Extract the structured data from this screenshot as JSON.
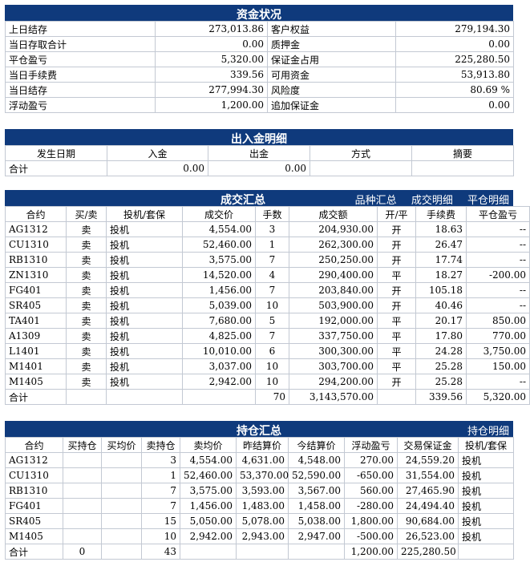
{
  "funds": {
    "title": "资金状况",
    "rows": [
      {
        "l1": "上日结存",
        "v1": "273,013.86",
        "l2": "客户权益",
        "v2": "279,194.30"
      },
      {
        "l1": "当日存取合计",
        "v1": "0.00",
        "l2": "质押金",
        "v2": "0.00"
      },
      {
        "l1": "平仓盈亏",
        "v1": "5,320.00",
        "l2": "保证金占用",
        "v2": "225,280.50"
      },
      {
        "l1": "当日手续费",
        "v1": "339.56",
        "l2": "可用资金",
        "v2": "53,913.80"
      },
      {
        "l1": "当日结存",
        "v1": "277,994.30",
        "l2": "风险度",
        "v2": "80.69 %"
      },
      {
        "l1": "浮动盈亏",
        "v1": "1,200.00",
        "l2": "追加保证金",
        "v2": "0.00"
      }
    ]
  },
  "deposits": {
    "title": "出入金明细",
    "headers": [
      "发生日期",
      "入金",
      "出金",
      "方式",
      "摘要"
    ],
    "total": {
      "label": "合计",
      "in": "0.00",
      "out": "0.00"
    }
  },
  "trades": {
    "title": "成交汇总",
    "links": [
      "品种汇总",
      "成交明细",
      "平仓明细"
    ],
    "headers": [
      "合约",
      "买/卖",
      "投机/套保",
      "成交价",
      "手数",
      "成交额",
      "开/平",
      "手续费",
      "平仓盈亏"
    ],
    "rows": [
      {
        "contract": "AG1312",
        "side": "卖",
        "type": "投机",
        "price": "4,554.00",
        "lots": "3",
        "amount": "204,930.00",
        "oc": "开",
        "fee": "18.63",
        "pnl": "--"
      },
      {
        "contract": "CU1310",
        "side": "卖",
        "type": "投机",
        "price": "52,460.00",
        "lots": "1",
        "amount": "262,300.00",
        "oc": "开",
        "fee": "26.47",
        "pnl": "--"
      },
      {
        "contract": "RB1310",
        "side": "卖",
        "type": "投机",
        "price": "3,575.00",
        "lots": "7",
        "amount": "250,250.00",
        "oc": "开",
        "fee": "17.74",
        "pnl": "--"
      },
      {
        "contract": "ZN1310",
        "side": "卖",
        "type": "投机",
        "price": "14,520.00",
        "lots": "4",
        "amount": "290,400.00",
        "oc": "平",
        "fee": "18.27",
        "pnl": "-200.00"
      },
      {
        "contract": "FG401",
        "side": "卖",
        "type": "投机",
        "price": "1,456.00",
        "lots": "7",
        "amount": "203,840.00",
        "oc": "开",
        "fee": "105.18",
        "pnl": "--"
      },
      {
        "contract": "SR405",
        "side": "卖",
        "type": "投机",
        "price": "5,039.00",
        "lots": "10",
        "amount": "503,900.00",
        "oc": "开",
        "fee": "40.46",
        "pnl": "--"
      },
      {
        "contract": "TA401",
        "side": "卖",
        "type": "投机",
        "price": "7,680.00",
        "lots": "5",
        "amount": "192,000.00",
        "oc": "平",
        "fee": "20.17",
        "pnl": "850.00"
      },
      {
        "contract": "A1309",
        "side": "卖",
        "type": "投机",
        "price": "4,825.00",
        "lots": "7",
        "amount": "337,750.00",
        "oc": "平",
        "fee": "17.80",
        "pnl": "770.00"
      },
      {
        "contract": "L1401",
        "side": "卖",
        "type": "投机",
        "price": "10,010.00",
        "lots": "6",
        "amount": "300,300.00",
        "oc": "平",
        "fee": "24.28",
        "pnl": "3,750.00"
      },
      {
        "contract": "M1401",
        "side": "卖",
        "type": "投机",
        "price": "3,037.00",
        "lots": "10",
        "amount": "303,700.00",
        "oc": "平",
        "fee": "25.28",
        "pnl": "150.00"
      },
      {
        "contract": "M1405",
        "side": "卖",
        "type": "投机",
        "price": "2,942.00",
        "lots": "10",
        "amount": "294,200.00",
        "oc": "开",
        "fee": "25.28",
        "pnl": "--"
      }
    ],
    "total": {
      "label": "合计",
      "lots": "70",
      "amount": "3,143,570.00",
      "fee": "339.56",
      "pnl": "5,320.00"
    }
  },
  "positions": {
    "title": "持仓汇总",
    "links": [
      "持仓明细"
    ],
    "headers": [
      "合约",
      "买持仓",
      "买均价",
      "卖持仓",
      "卖均价",
      "昨结算价",
      "今结算价",
      "浮动盈亏",
      "交易保证金",
      "投机/套保"
    ],
    "rows": [
      {
        "contract": "AG1312",
        "buy": "",
        "buyavg": "",
        "sell": "3",
        "sellavg": "4,554.00",
        "prev": "4,631.00",
        "today": "4,548.00",
        "float": "270.00",
        "margin": "24,559.20",
        "type": "投机"
      },
      {
        "contract": "CU1310",
        "buy": "",
        "buyavg": "",
        "sell": "1",
        "sellavg": "52,460.00",
        "prev": "53,370.00",
        "today": "52,590.00",
        "float": "-650.00",
        "margin": "31,554.00",
        "type": "投机"
      },
      {
        "contract": "RB1310",
        "buy": "",
        "buyavg": "",
        "sell": "7",
        "sellavg": "3,575.00",
        "prev": "3,593.00",
        "today": "3,567.00",
        "float": "560.00",
        "margin": "27,465.90",
        "type": "投机"
      },
      {
        "contract": "FG401",
        "buy": "",
        "buyavg": "",
        "sell": "7",
        "sellavg": "1,456.00",
        "prev": "1,483.00",
        "today": "1,458.00",
        "float": "-280.00",
        "margin": "24,494.40",
        "type": "投机"
      },
      {
        "contract": "SR405",
        "buy": "",
        "buyavg": "",
        "sell": "15",
        "sellavg": "5,050.00",
        "prev": "5,078.00",
        "today": "5,038.00",
        "float": "1,800.00",
        "margin": "90,684.00",
        "type": "投机"
      },
      {
        "contract": "M1405",
        "buy": "",
        "buyavg": "",
        "sell": "10",
        "sellavg": "2,942.00",
        "prev": "2,943.00",
        "today": "2,947.00",
        "float": "-500.00",
        "margin": "26,523.00",
        "type": "投机"
      }
    ],
    "total": {
      "label": "合计",
      "buy": "0",
      "sell": "43",
      "float": "1,200.00",
      "margin": "225,280.50"
    }
  }
}
